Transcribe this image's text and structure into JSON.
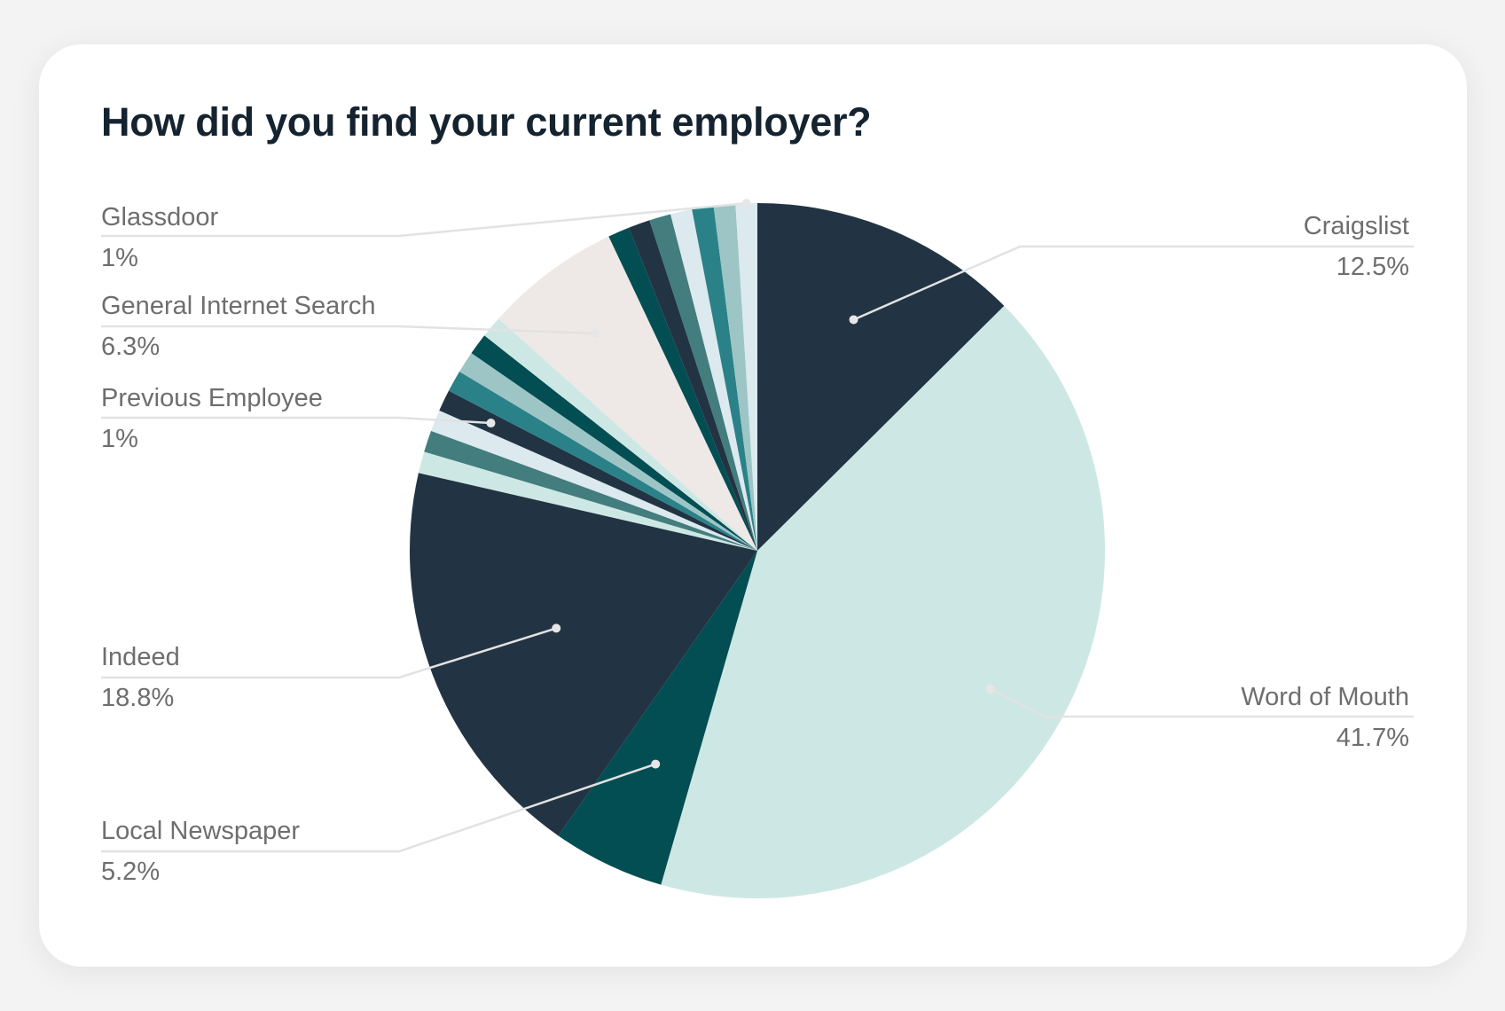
{
  "chart_data": {
    "type": "pie",
    "title": "How did you find your current employer?",
    "slices": [
      {
        "label": "Craigslist",
        "value": 12.5,
        "display": "12.5%",
        "color": "#223443"
      },
      {
        "label": "Word of Mouth",
        "value": 41.7,
        "display": "41.7%",
        "color": "#cde8e4"
      },
      {
        "label": "Local Newspaper",
        "value": 5.2,
        "display": "5.2%",
        "color": "#034e53"
      },
      {
        "label": "Indeed",
        "value": 18.8,
        "display": "18.8%",
        "color": "#223443"
      },
      {
        "label": "",
        "value": 1.0,
        "display": "",
        "color": "#cde8e4"
      },
      {
        "label": "",
        "value": 1.0,
        "display": "",
        "color": "#437d7e"
      },
      {
        "label": "",
        "value": 1.0,
        "display": "",
        "color": "#dce9ef"
      },
      {
        "label": "Previous Employee",
        "value": 1.0,
        "display": "1%",
        "color": "#223443"
      },
      {
        "label": "",
        "value": 1.0,
        "display": "",
        "color": "#2a8288"
      },
      {
        "label": "",
        "value": 1.0,
        "display": "",
        "color": "#9dc5c5"
      },
      {
        "label": "",
        "value": 1.0,
        "display": "",
        "color": "#034e53"
      },
      {
        "label": "",
        "value": 1.0,
        "display": "",
        "color": "#cde8e4"
      },
      {
        "label": "General Internet Search",
        "value": 6.3,
        "display": "6.3%",
        "color": "#eee8e6"
      },
      {
        "label": "",
        "value": 1.0,
        "display": "",
        "color": "#034e53"
      },
      {
        "label": "",
        "value": 1.0,
        "display": "",
        "color": "#223443"
      },
      {
        "label": "",
        "value": 1.0,
        "display": "",
        "color": "#437d7e"
      },
      {
        "label": "",
        "value": 1.0,
        "display": "",
        "color": "#dce9ef"
      },
      {
        "label": "",
        "value": 1.0,
        "display": "",
        "color": "#2a8288"
      },
      {
        "label": "",
        "value": 1.0,
        "display": "",
        "color": "#9dc5c5"
      },
      {
        "label": "Glassdoor",
        "value": 1.0,
        "display": "1%",
        "color": "#dce9ef"
      }
    ]
  }
}
